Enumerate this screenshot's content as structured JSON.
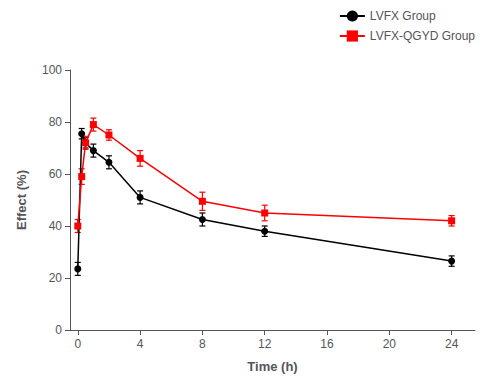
{
  "chart_data": {
    "type": "line",
    "xlabel": "Time (h)",
    "ylabel": "Effect (%)",
    "x": [
      0,
      0.25,
      0.5,
      1,
      2,
      4,
      8,
      12,
      24
    ],
    "series": [
      {
        "name": "LVFX Group",
        "color": "#000000",
        "marker": "circle",
        "values": [
          23.5,
          75.5,
          72.0,
          69.0,
          64.5,
          51.0,
          42.5,
          38.0,
          26.5
        ],
        "errors": [
          2.5,
          2.0,
          2.0,
          2.5,
          2.5,
          2.5,
          2.5,
          2.0,
          2.0
        ]
      },
      {
        "name": "LVFX-QGYD Group",
        "color": "#ff0000",
        "marker": "square",
        "values": [
          40.0,
          59.0,
          72.0,
          79.0,
          75.0,
          66.0,
          49.5,
          45.0,
          42.0
        ],
        "errors": [
          2.5,
          3.0,
          2.5,
          2.5,
          2.0,
          3.0,
          3.5,
          3.0,
          2.0
        ]
      }
    ],
    "xlim": [
      -0.5,
      25.5
    ],
    "xticks": [
      0,
      4,
      8,
      12,
      16,
      20,
      24
    ],
    "ylim": [
      0,
      100
    ],
    "yticks": [
      0,
      20,
      40,
      60,
      80,
      100
    ],
    "grid": false,
    "legend": "top"
  }
}
